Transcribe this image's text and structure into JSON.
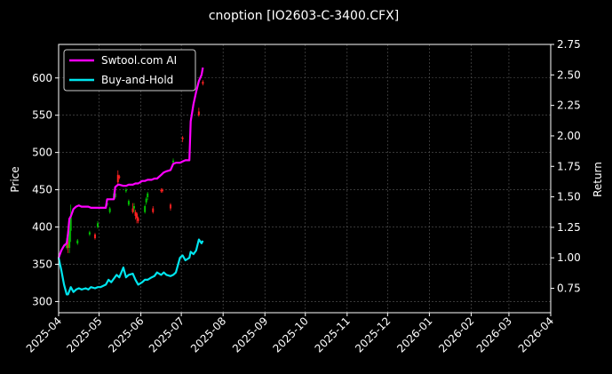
{
  "chart_data": {
    "type": "line",
    "title": "cnoption [IO2603-C-3400.CFX]",
    "ylabel": "Price",
    "y2label": "Return",
    "xlim": [
      "2025-04-01",
      "2026-04-01"
    ],
    "ylim": [
      285,
      645
    ],
    "y2lim": [
      0.55,
      2.75
    ],
    "x_ticks": [
      "2025-04-01",
      "2025-05-01",
      "2025-06-01",
      "2025-07-01",
      "2025-08-01",
      "2025-09-01",
      "2025-10-01",
      "2025-11-01",
      "2025-12-01",
      "2026-01-01",
      "2026-02-01",
      "2026-03-01",
      "2026-04-01"
    ],
    "x_tick_labels": [
      "2025-04",
      "2025-05",
      "2025-06",
      "2025-07",
      "2025-08",
      "2025-09",
      "2025-10",
      "2025-11",
      "2025-12",
      "2026-01",
      "2026-02",
      "2026-03",
      "2026-04"
    ],
    "y_ticks": [
      300,
      350,
      400,
      450,
      500,
      550,
      600
    ],
    "y2_ticks": [
      0.75,
      1.0,
      1.25,
      1.5,
      1.75,
      2.0,
      2.25,
      2.5,
      2.75
    ],
    "y2_tick_labels": [
      "0.75",
      "1.00",
      "1.25",
      "1.50",
      "1.75",
      "2.00",
      "2.25",
      "2.50",
      "2.75"
    ],
    "grid": true,
    "legend": "top-left",
    "series": [
      {
        "name": "Swtool.com AI",
        "color": "#ff00ff",
        "axis": "right",
        "x": [
          "2025-04-01",
          "2025-04-03",
          "2025-04-05",
          "2025-04-07",
          "2025-04-08",
          "2025-04-09",
          "2025-04-10",
          "2025-04-12",
          "2025-04-14",
          "2025-04-16",
          "2025-04-18",
          "2025-04-21",
          "2025-04-23",
          "2025-04-25",
          "2025-04-28",
          "2025-04-30",
          "2025-05-02",
          "2025-05-06",
          "2025-05-07",
          "2025-05-09",
          "2025-05-12",
          "2025-05-13",
          "2025-05-15",
          "2025-05-16",
          "2025-05-19",
          "2025-05-21",
          "2025-05-23",
          "2025-05-26",
          "2025-05-28",
          "2025-05-30",
          "2025-06-02",
          "2025-06-04",
          "2025-06-06",
          "2025-06-09",
          "2025-06-11",
          "2025-06-13",
          "2025-06-16",
          "2025-06-18",
          "2025-06-20",
          "2025-06-23",
          "2025-06-25",
          "2025-06-27",
          "2025-06-30",
          "2025-07-02",
          "2025-07-04",
          "2025-07-07",
          "2025-07-08",
          "2025-07-10",
          "2025-07-12",
          "2025-07-14",
          "2025-07-16",
          "2025-07-17"
        ],
        "values": [
          1.0,
          1.06,
          1.1,
          1.12,
          1.2,
          1.32,
          1.34,
          1.4,
          1.42,
          1.43,
          1.42,
          1.42,
          1.42,
          1.41,
          1.41,
          1.41,
          1.41,
          1.41,
          1.48,
          1.48,
          1.48,
          1.58,
          1.6,
          1.6,
          1.59,
          1.59,
          1.6,
          1.6,
          1.61,
          1.61,
          1.63,
          1.63,
          1.64,
          1.64,
          1.65,
          1.65,
          1.68,
          1.7,
          1.71,
          1.72,
          1.77,
          1.78,
          1.78,
          1.79,
          1.8,
          1.8,
          2.12,
          2.26,
          2.36,
          2.45,
          2.5,
          2.56
        ]
      },
      {
        "name": "Buy-and-Hold",
        "color": "#00e5ee",
        "axis": "right",
        "x": [
          "2025-04-01",
          "2025-04-03",
          "2025-04-05",
          "2025-04-07",
          "2025-04-08",
          "2025-04-10",
          "2025-04-12",
          "2025-04-14",
          "2025-04-16",
          "2025-04-18",
          "2025-04-21",
          "2025-04-23",
          "2025-04-25",
          "2025-04-28",
          "2025-04-30",
          "2025-05-02",
          "2025-05-06",
          "2025-05-08",
          "2025-05-10",
          "2025-05-12",
          "2025-05-14",
          "2025-05-16",
          "2025-05-19",
          "2025-05-21",
          "2025-05-23",
          "2025-05-26",
          "2025-05-28",
          "2025-05-30",
          "2025-06-02",
          "2025-06-04",
          "2025-06-06",
          "2025-06-09",
          "2025-06-11",
          "2025-06-13",
          "2025-06-16",
          "2025-06-18",
          "2025-06-20",
          "2025-06-23",
          "2025-06-25",
          "2025-06-27",
          "2025-06-30",
          "2025-07-02",
          "2025-07-04",
          "2025-07-07",
          "2025-07-08",
          "2025-07-10",
          "2025-07-12",
          "2025-07-14",
          "2025-07-16",
          "2025-07-17"
        ],
        "values": [
          1.0,
          0.9,
          0.78,
          0.7,
          0.7,
          0.76,
          0.72,
          0.74,
          0.75,
          0.74,
          0.75,
          0.74,
          0.76,
          0.75,
          0.76,
          0.76,
          0.78,
          0.82,
          0.8,
          0.83,
          0.86,
          0.84,
          0.92,
          0.84,
          0.86,
          0.87,
          0.82,
          0.78,
          0.8,
          0.82,
          0.82,
          0.84,
          0.85,
          0.88,
          0.86,
          0.88,
          0.86,
          0.85,
          0.86,
          0.88,
          1.0,
          1.02,
          0.98,
          1.0,
          1.05,
          1.03,
          1.06,
          1.15,
          1.12,
          1.14
        ]
      }
    ],
    "candles": {
      "x": [
        "2025-04-07",
        "2025-04-08",
        "2025-04-09",
        "2025-04-10",
        "2025-04-15",
        "2025-04-24",
        "2025-04-28",
        "2025-04-30",
        "2025-05-07",
        "2025-05-09",
        "2025-05-12",
        "2025-05-13",
        "2025-05-15",
        "2025-05-16",
        "2025-05-21",
        "2025-05-23",
        "2025-05-26",
        "2025-05-27",
        "2025-05-28",
        "2025-05-29",
        "2025-05-30",
        "2025-06-04",
        "2025-06-05",
        "2025-06-06",
        "2025-06-10",
        "2025-06-16",
        "2025-06-17",
        "2025-06-23",
        "2025-06-25",
        "2025-07-02",
        "2025-07-14",
        "2025-07-17"
      ],
      "open": [
        372,
        380,
        372,
        395,
        378,
        390,
        390,
        400,
        430,
        420,
        440,
        440,
        470,
        468,
        448,
        430,
        425,
        425,
        420,
        418,
        412,
        420,
        433,
        440,
        425,
        450,
        450,
        430,
        487,
        520,
        555,
        595
      ],
      "close": [
        380,
        372,
        395,
        415,
        382,
        393,
        385,
        405,
        432,
        425,
        445,
        445,
        460,
        466,
        450,
        435,
        420,
        428,
        415,
        412,
        408,
        428,
        438,
        445,
        420,
        448,
        448,
        425,
        489,
        518,
        550,
        592
      ],
      "high": [
        385,
        385,
        400,
        430,
        384,
        395,
        392,
        408,
        436,
        427,
        448,
        448,
        476,
        470,
        452,
        437,
        432,
        432,
        423,
        420,
        414,
        430,
        440,
        447,
        428,
        452,
        452,
        432,
        492,
        522,
        560,
        597
      ],
      "low": [
        370,
        365,
        365,
        380,
        376,
        388,
        383,
        398,
        428,
        418,
        438,
        438,
        455,
        464,
        446,
        428,
        418,
        420,
        410,
        405,
        405,
        418,
        430,
        436,
        418,
        446,
        446,
        422,
        485,
        514,
        548,
        590
      ]
    }
  }
}
